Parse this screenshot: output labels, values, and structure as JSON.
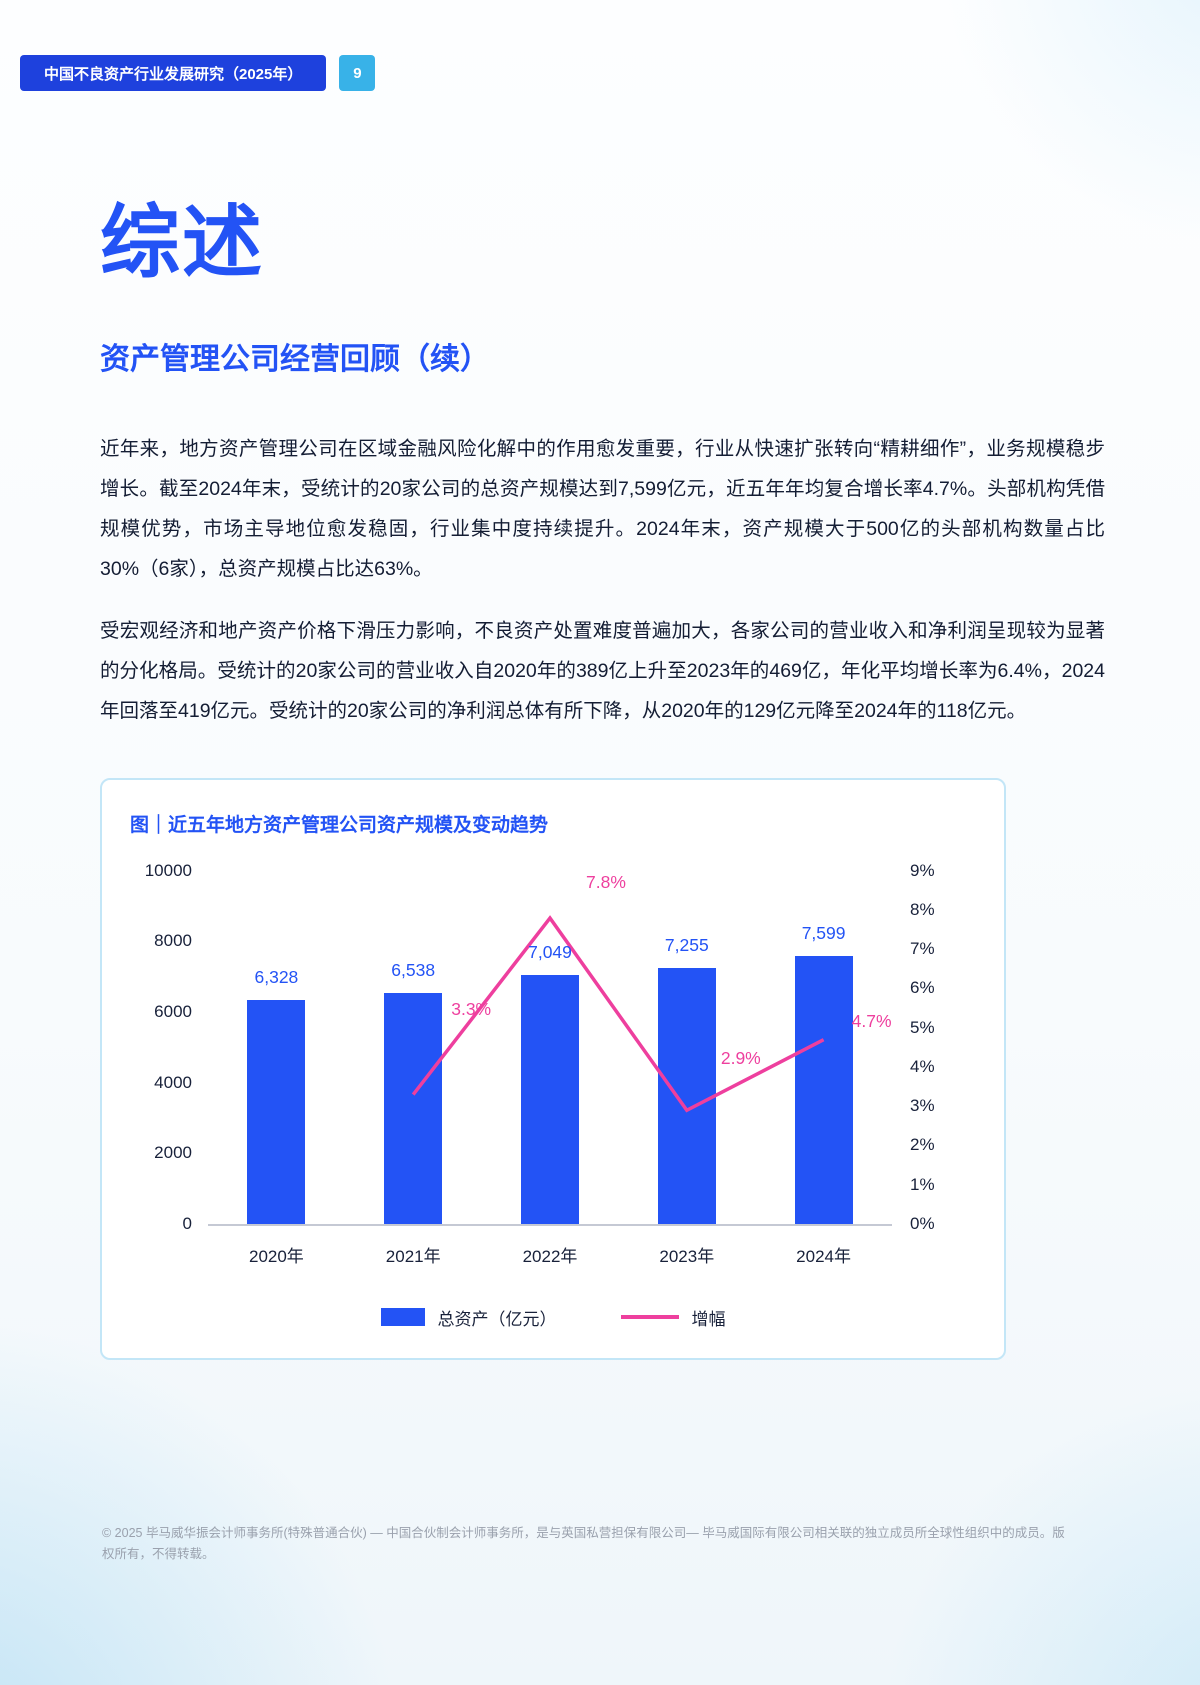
{
  "colors": {
    "accent_blue": "#2353f5",
    "header_blue": "#1e41dd",
    "badge_blue": "#38b2e8",
    "line_pink": "#ee3f9e",
    "text_dark": "#141d34",
    "border_light_blue": "#c3e6f7",
    "footer_gray": "#9aa1ad"
  },
  "header": {
    "title": "中国不良资产行业发展研究（2025年）",
    "page_number": "9"
  },
  "main": {
    "title": "综述",
    "subtitle": "资产管理公司经营回顾（续）",
    "paragraphs": [
      "近年来，地方资产管理公司在区域金融风险化解中的作用愈发重要，行业从快速扩张转向“精耕细作”，业务规模稳步增长。截至2024年末，受统计的20家公司的总资产规模达到7,599亿元，近五年年均复合增长率4.7%。头部机构凭借规模优势，市场主导地位愈发稳固，行业集中度持续提升。2024年末，资产规模大于500亿的头部机构数量占比30%（6家），总资产规模占比达63%。",
      "受宏观经济和地产资产价格下滑压力影响，不良资产处置难度普遍加大，各家公司的营业收入和净利润呈现较为显著的分化格局。受统计的20家公司的营业收入自2020年的389亿上升至2023年的469亿，年化平均增长率为6.4%，2024年回落至419亿元。受统计的20家公司的净利润总体有所下降，从2020年的129亿元降至2024年的118亿元。"
    ]
  },
  "chart_data": {
    "type": "bar",
    "title": "图｜近五年地方资产管理公司资产规模及变动趋势",
    "categories": [
      "2020年",
      "2021年",
      "2022年",
      "2023年",
      "2024年"
    ],
    "series": [
      {
        "name": "总资产（亿元）",
        "type": "bar",
        "axis": "left",
        "color": "#2353f5",
        "values": [
          6328,
          6538,
          7049,
          7255,
          7599
        ],
        "labels": [
          "6,328",
          "6,538",
          "7,049",
          "7,255",
          "7,599"
        ]
      },
      {
        "name": "增幅",
        "type": "line",
        "axis": "right",
        "color": "#ee3f9e",
        "values": [
          null,
          3.3,
          7.8,
          2.9,
          4.7
        ],
        "labels": [
          "",
          "3.3%",
          "7.8%",
          "2.9%",
          "4.7%"
        ]
      }
    ],
    "left_axis": {
      "min": 0,
      "max": 10000,
      "ticks": [
        "10000",
        "8000",
        "6000",
        "4000",
        "2000",
        "0"
      ]
    },
    "right_axis": {
      "min": 0,
      "max": 9,
      "ticks": [
        "9%",
        "8%",
        "7%",
        "6%",
        "5%",
        "4%",
        "3%",
        "2%",
        "1%",
        "0%"
      ]
    },
    "legend": [
      {
        "label": "总资产（亿元）",
        "swatch": "bar"
      },
      {
        "label": "增幅",
        "swatch": "line"
      }
    ],
    "grid": "off",
    "legend_position": "bottom"
  },
  "footer": {
    "text": "© 2025 毕马威华振会计师事务所(特殊普通合伙) — 中国合伙制会计师事务所，是与英国私营担保有限公司— 毕马威国际有限公司相关联的独立成员所全球性组织中的成员。版权所有，不得转载。"
  }
}
